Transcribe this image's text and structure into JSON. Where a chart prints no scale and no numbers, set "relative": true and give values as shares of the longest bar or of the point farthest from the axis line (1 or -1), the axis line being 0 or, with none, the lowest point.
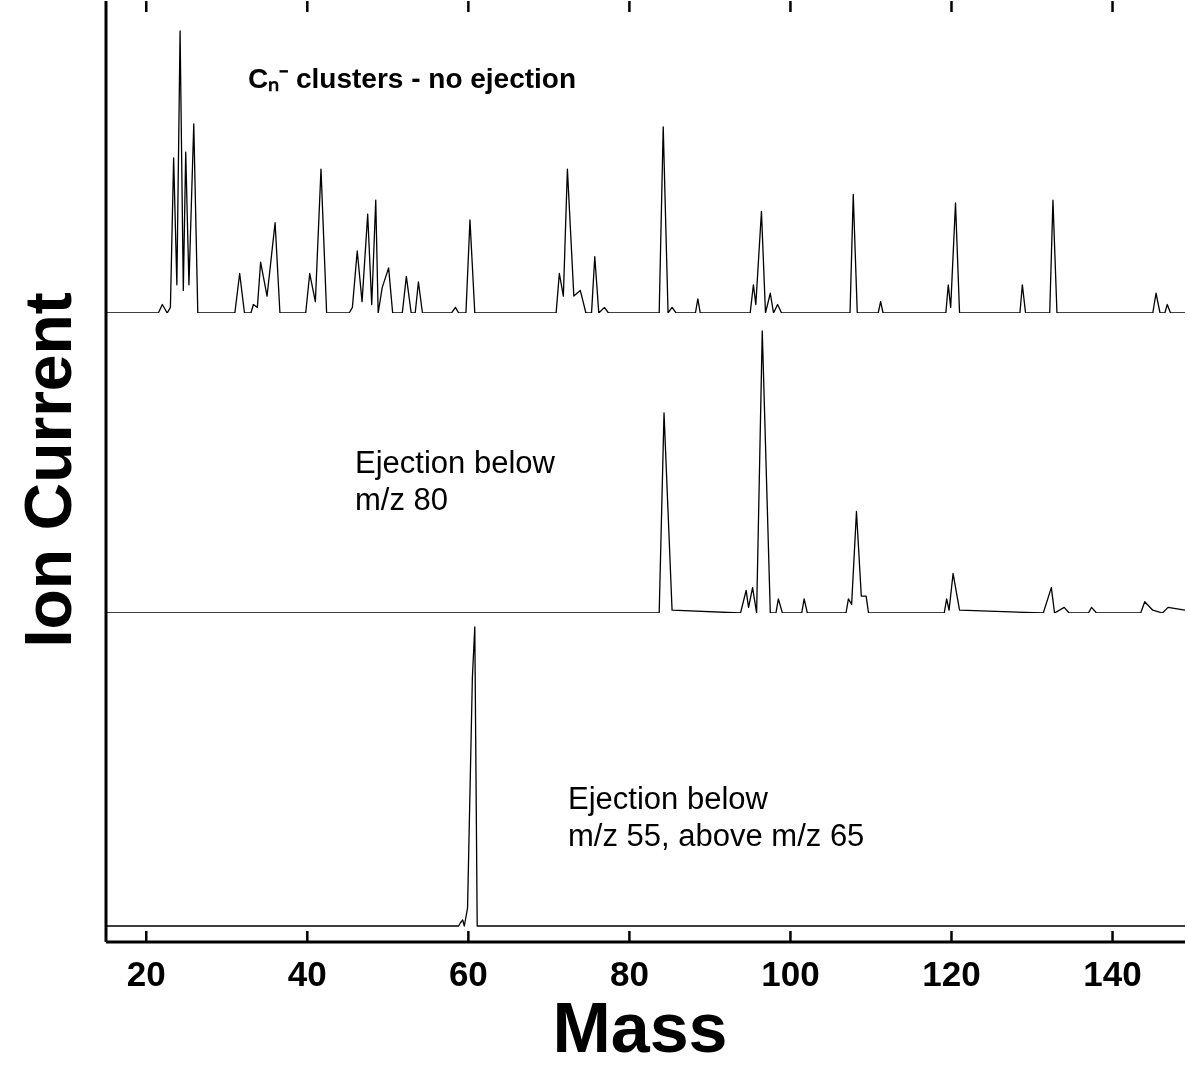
{
  "chart_data": [
    {
      "type": "line",
      "relative": true,
      "tick_labels": false,
      "xlim": [
        15,
        149
      ],
      "xticks": [
        20,
        40,
        60,
        80,
        100,
        120,
        140
      ],
      "annotations": [
        "Cₙ⁻ clusters - no ejection"
      ],
      "x": [
        15,
        21.5,
        22.0,
        22.6,
        23.0,
        23.4,
        23.8,
        24.2,
        24.6,
        24.9,
        25.3,
        25.9,
        26.4,
        31.0,
        31.6,
        32.2,
        33.0,
        33.3,
        33.8,
        34.2,
        35.0,
        36.0,
        36.6,
        39.8,
        40.3,
        41.0,
        41.7,
        42.4,
        45.2,
        45.6,
        46.2,
        46.8,
        47.5,
        48.0,
        48.5,
        48.8,
        49.3,
        50.1,
        50.6,
        51.8,
        52.3,
        52.9,
        53.4,
        53.8,
        54.3,
        57.9,
        58.4,
        58.8,
        59.7,
        60.2,
        60.8,
        70.9,
        71.3,
        71.8,
        72.3,
        73.1,
        73.9,
        74.6,
        75.3,
        75.7,
        76.2,
        76.9,
        77.4,
        83.7,
        84.2,
        84.8,
        85.3,
        85.8,
        88.2,
        88.5,
        88.8,
        95.0,
        95.4,
        95.7,
        96.4,
        96.9,
        97.5,
        97.9,
        98.4,
        98.9,
        107.4,
        107.8,
        108.3,
        110.9,
        111.2,
        111.5,
        119.3,
        119.6,
        119.9,
        120.5,
        121.0,
        128.5,
        128.8,
        129.2,
        132.2,
        132.6,
        133.1,
        145.0,
        145.4,
        145.9,
        146.5,
        146.8,
        147.2,
        149
      ],
      "series": [
        {
          "color": "#000000",
          "values": [
            0,
            0,
            0.03,
            0,
            0.02,
            0.55,
            0.1,
            1,
            0.08,
            0.57,
            0.1,
            0.67,
            0,
            0,
            0.14,
            0,
            0,
            0.03,
            0.02,
            0.18,
            0.06,
            0.32,
            0,
            0,
            0.14,
            0.04,
            0.51,
            0,
            0,
            0.02,
            0.22,
            0.04,
            0.35,
            0.03,
            0.4,
            0,
            0.09,
            0.16,
            0,
            0,
            0.13,
            0,
            0,
            0.11,
            0,
            0,
            0.02,
            0,
            0,
            0.33,
            0,
            0,
            0.14,
            0.06,
            0.51,
            0.06,
            0.08,
            0,
            0,
            0.2,
            0,
            0.02,
            0,
            0,
            0.66,
            0,
            0.02,
            0,
            0,
            0.05,
            0,
            0,
            0.1,
            0.03,
            0.36,
            0,
            0.07,
            0,
            0.03,
            0,
            0,
            0.42,
            0,
            0,
            0.04,
            0,
            0,
            0.1,
            0.02,
            0.39,
            0,
            0,
            0.1,
            0,
            0,
            0.4,
            0,
            0,
            0.07,
            0,
            0,
            0.03,
            0,
            0
          ]
        }
      ]
    },
    {
      "type": "line",
      "relative": true,
      "tick_labels": false,
      "xlim": [
        15,
        149
      ],
      "xticks": [
        20,
        40,
        60,
        80,
        100,
        120,
        140
      ],
      "ylabel": "Ion Current",
      "annotations": [
        "Ejection below\nm/z 80"
      ],
      "x": [
        15,
        83.7,
        84.3,
        85.3,
        93.8,
        94.5,
        94.8,
        95.3,
        95.8,
        96.5,
        97.5,
        98.2,
        98.5,
        99.0,
        101.4,
        101.7,
        102.1,
        106.9,
        107.2,
        107.6,
        108.2,
        108.8,
        109.4,
        109.7,
        119.1,
        119.4,
        119.7,
        120.2,
        121.0,
        131.4,
        132.4,
        132.8,
        134.0,
        134.6,
        137.0,
        137.4,
        138.0,
        143.5,
        144.0,
        145.0,
        146.2,
        146.9,
        149
      ],
      "series": [
        {
          "color": "#000000",
          "values": [
            0,
            0,
            0.71,
            0.01,
            0,
            0.08,
            0.02,
            0.09,
            0,
            1,
            0,
            0,
            0.05,
            0,
            0,
            0.05,
            0,
            0,
            0.05,
            0.03,
            0.36,
            0.06,
            0.06,
            0,
            0,
            0.05,
            0.01,
            0.14,
            0.01,
            0,
            0.09,
            0,
            0.02,
            0,
            0,
            0.02,
            0,
            0,
            0.04,
            0.01,
            0,
            0.02,
            0.01
          ]
        }
      ]
    },
    {
      "type": "line",
      "relative": true,
      "tick_labels": "x",
      "xlim": [
        15,
        149
      ],
      "xticks": [
        20,
        40,
        60,
        80,
        100,
        120,
        140
      ],
      "xlabel": "Mass",
      "annotations": [
        "Ejection below\nm/z 55, above m/z 65"
      ],
      "x": [
        15,
        58.8,
        59.0,
        59.3,
        59.5,
        59.9,
        60.5,
        60.8,
        61.1,
        149
      ],
      "series": [
        {
          "color": "#000000",
          "values": [
            0,
            0,
            0.01,
            0.02,
            0,
            0.06,
            0.83,
            1,
            0,
            0
          ]
        }
      ]
    }
  ]
}
